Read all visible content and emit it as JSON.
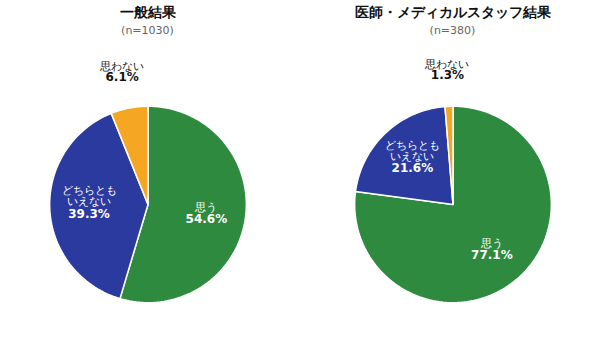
{
  "chart_data": [
    {
      "type": "pie",
      "title": "一般結果",
      "subtitle": "(n=1030)",
      "categories": [
        "思う",
        "どちらとも\nいえない",
        "思わない"
      ],
      "values": [
        54.6,
        39.3,
        6.1
      ],
      "value_labels": [
        "54.6%",
        "39.3%",
        "6.1%"
      ],
      "colors": [
        "#2d8a3e",
        "#2b3a9e",
        "#f5a623"
      ],
      "data_labels": true
    },
    {
      "type": "pie",
      "title": "医師・メディカルスタッフ結果",
      "subtitle": "(n=380)",
      "categories": [
        "思う",
        "どちらとも\nいえない",
        "思わない"
      ],
      "values": [
        77.1,
        21.6,
        1.3
      ],
      "value_labels": [
        "77.1%",
        "21.6%",
        "1.3%"
      ],
      "colors": [
        "#2d8a3e",
        "#2b3a9e",
        "#f5a623"
      ],
      "data_labels": true
    }
  ]
}
